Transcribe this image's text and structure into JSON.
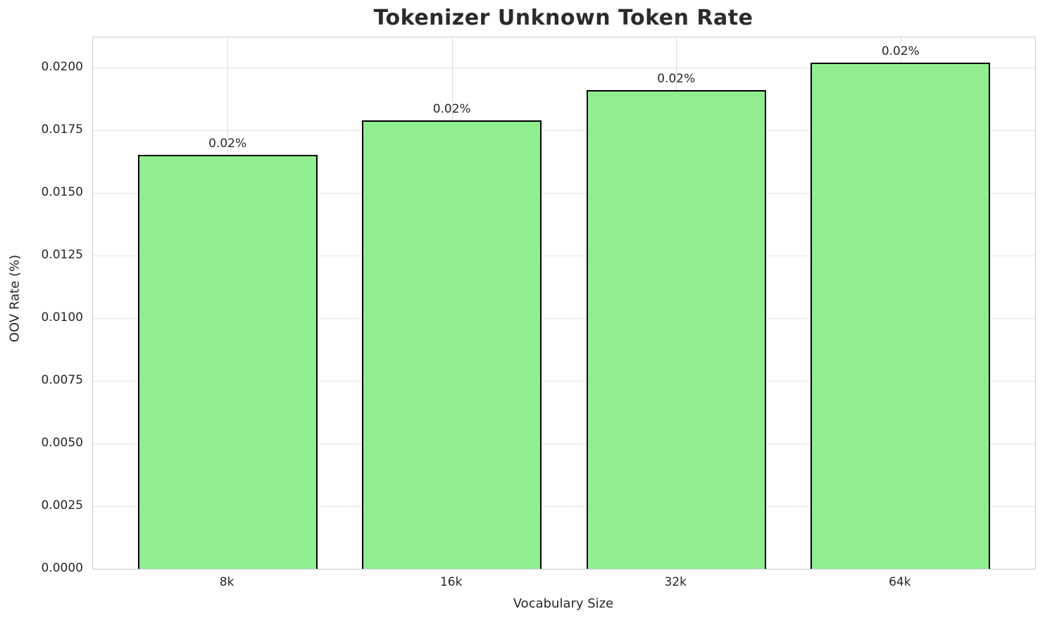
{
  "chart_data": {
    "type": "bar",
    "title": "Tokenizer Unknown Token Rate",
    "xlabel": "Vocabulary Size",
    "ylabel": "OOV Rate (%)",
    "categories": [
      "8k",
      "16k",
      "32k",
      "64k"
    ],
    "values": [
      0.0165,
      0.0179,
      0.0191,
      0.0202
    ],
    "bar_labels": [
      "0.02%",
      "0.02%",
      "0.02%",
      "0.02%"
    ],
    "ylim": [
      0,
      0.0212
    ],
    "yticks": [
      0.0,
      0.0025,
      0.005,
      0.0075,
      0.01,
      0.0125,
      0.015,
      0.0175,
      0.02
    ],
    "ytick_labels": [
      "0.0000",
      "0.0025",
      "0.0050",
      "0.0075",
      "0.0100",
      "0.0125",
      "0.0150",
      "0.0175",
      "0.0200"
    ],
    "grid": true,
    "legend": null,
    "colors": {
      "bar_fill": "#90EE90",
      "bar_edge": "#000000",
      "grid_h": "#e4e4e4",
      "grid_v": "#dcdcdc",
      "spine": "#cccccc",
      "text": "#262626",
      "title_text": "#2b2b2b",
      "background": "#ffffff"
    }
  }
}
